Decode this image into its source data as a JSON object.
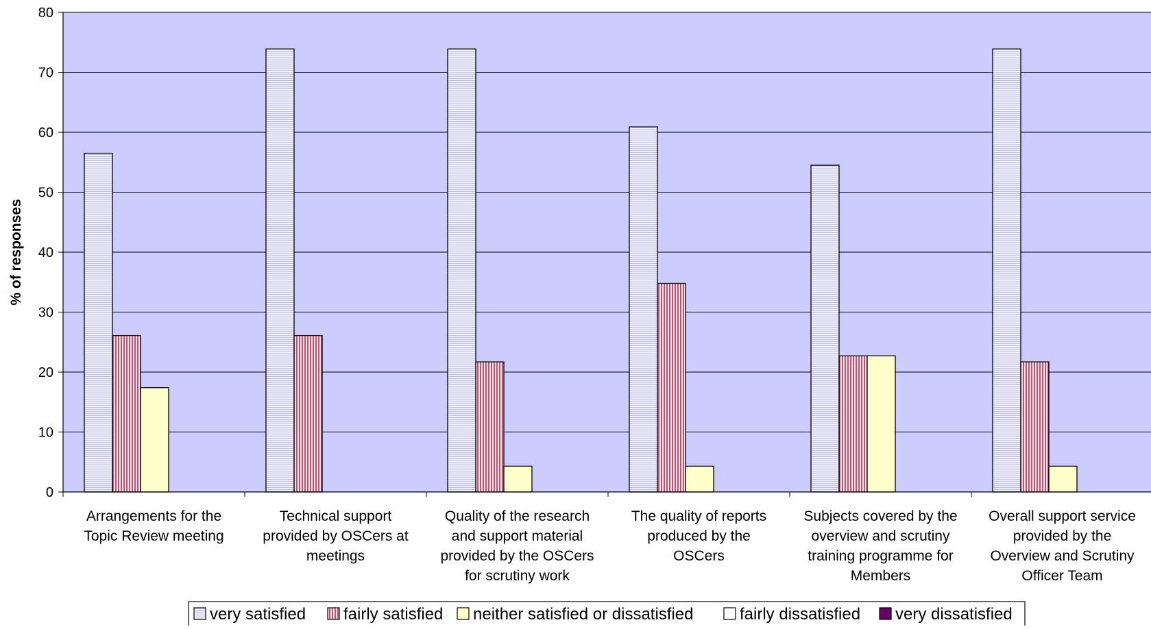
{
  "chart_data": {
    "type": "bar",
    "title": "",
    "xlabel": "",
    "ylabel": "% of responses",
    "ylim": [
      0,
      80
    ],
    "yticks": [
      0,
      10,
      20,
      30,
      40,
      50,
      60,
      70,
      80
    ],
    "grid": true,
    "legend_position": "bottom",
    "categories": [
      [
        "Arrangements for the",
        "Topic Review meeting"
      ],
      [
        "Technical support",
        "provided by OSCers at",
        "meetings"
      ],
      [
        "Quality of the research",
        "and support material",
        "provided by the OSCers",
        "for scrutiny work"
      ],
      [
        "The quality of reports",
        "produced by the",
        "OSCers"
      ],
      [
        "Subjects covered by the",
        "overview and scrutiny",
        "training programme for",
        "Members"
      ],
      [
        "Overall support service",
        "provided by the",
        "Overview and Scrutiny",
        "Officer Team"
      ]
    ],
    "series": [
      {
        "name": "very satisfied",
        "values": [
          56.5,
          73.9,
          73.9,
          60.9,
          54.5,
          73.9
        ],
        "color": "#e8e8f8",
        "pattern": "horizontal-lines"
      },
      {
        "name": "fairly satisfied",
        "values": [
          26.1,
          26.1,
          21.7,
          34.8,
          22.7,
          21.7
        ],
        "color": "#c8869c",
        "pattern": "vertical-lines"
      },
      {
        "name": "neither satisfied or dissatisfied",
        "values": [
          17.4,
          0,
          4.3,
          4.3,
          22.7,
          4.3
        ],
        "color": "#ffffcc",
        "pattern": "solid"
      },
      {
        "name": "fairly dissatisfied",
        "values": [
          0,
          0,
          0,
          0,
          0,
          0
        ],
        "color": "#ffffff",
        "pattern": "solid"
      },
      {
        "name": "very dissatisfied",
        "values": [
          0,
          0,
          0,
          0,
          0,
          0
        ],
        "color": "#660066",
        "pattern": "solid"
      }
    ],
    "colors": {
      "plot_background": "#ccccff",
      "gridline": "#000000",
      "bar_outline": "#000000"
    }
  }
}
